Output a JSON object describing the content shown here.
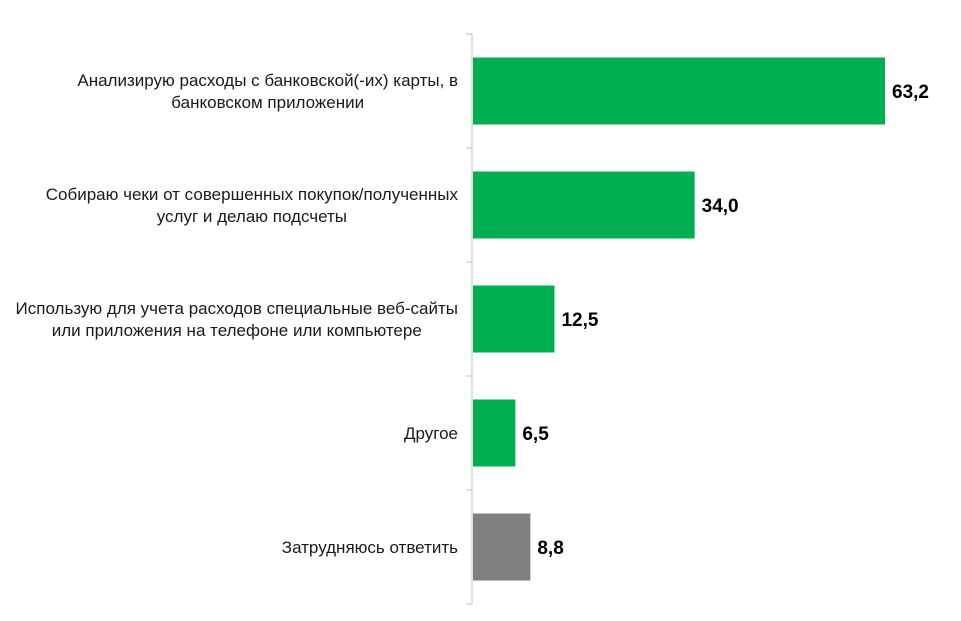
{
  "chart_data": {
    "type": "bar",
    "orientation": "horizontal",
    "categories": [
      [
        "Анализирую расходы с банковской(-их) карты, в",
        "банковском приложении"
      ],
      [
        "Собираю чеки от совершенных покупок/полученных",
        "услуг и делаю подсчеты"
      ],
      [
        "Использую для учета расходов специальные веб-сайты",
        "или приложения на телефоне или компьютере"
      ],
      [
        "Другое"
      ],
      [
        "Затрудняюсь ответить"
      ]
    ],
    "values": [
      63.2,
      34.0,
      12.5,
      6.5,
      8.8
    ],
    "value_labels": [
      "63,2",
      "34,0",
      "12,5",
      "6,5",
      "8,8"
    ],
    "bar_colors": [
      "#00b050",
      "#00b050",
      "#00b050",
      "#00b050",
      "#808080"
    ],
    "xlim": [
      0,
      65
    ],
    "grid": false,
    "legend": "none",
    "title": "",
    "xlabel": "",
    "ylabel": ""
  }
}
